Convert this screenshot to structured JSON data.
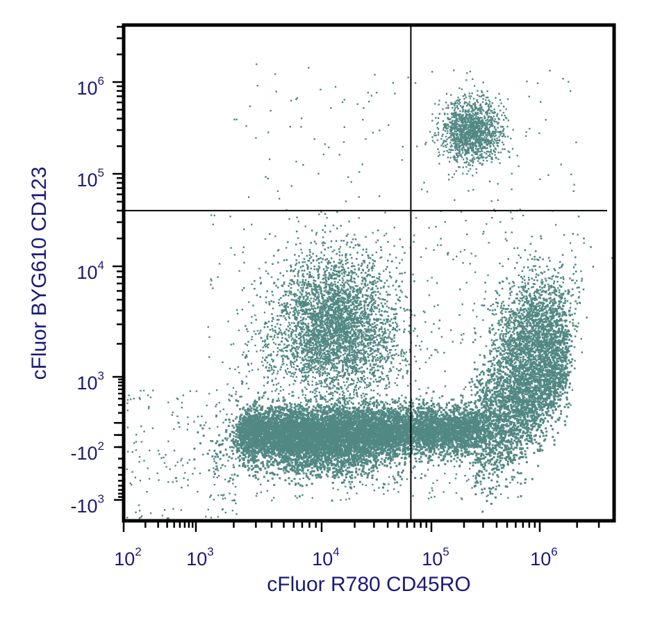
{
  "chart_data": {
    "type": "scatter",
    "xlabel": "cFluor R780 CD45RO",
    "ylabel": "cFluor BYG610 CD123",
    "x_scale": "biexponential",
    "y_scale": "biexponential",
    "xlim": [
      100,
      4000000
    ],
    "ylim": [
      -2500,
      4000000
    ],
    "x_ticks": [
      {
        "base": "10",
        "exp": "2",
        "value": 100
      },
      {
        "base": "10",
        "exp": "3",
        "value": 1000
      },
      {
        "base": "10",
        "exp": "4",
        "value": 10000
      },
      {
        "base": "10",
        "exp": "5",
        "value": 100000
      },
      {
        "base": "10",
        "exp": "6",
        "value": 1000000
      }
    ],
    "y_ticks": [
      {
        "base": "10",
        "exp": "6",
        "value": 1000000
      },
      {
        "base": "10",
        "exp": "5",
        "value": 100000
      },
      {
        "base": "10",
        "exp": "4",
        "value": 10000
      },
      {
        "base": "10",
        "exp": "3",
        "value": 1000
      },
      {
        "base": "-10",
        "exp": "2",
        "value": -100
      },
      {
        "base": "-10",
        "exp": "3",
        "value": -1000
      }
    ],
    "gates": {
      "x_threshold": 65000,
      "y_threshold": 40000
    },
    "point_color": "#528884",
    "populations": [
      {
        "x_center": 150000,
        "x_spread": [
          25000,
          1000000
        ],
        "y_center": -100,
        "y_spread": [
          -600,
          800
        ],
        "count": "dense",
        "shape": "rising band"
      },
      {
        "x_center": 9000,
        "x_spread": [
          2000,
          80000
        ],
        "y_center": -80,
        "y_spread": [
          -500,
          600
        ],
        "count": "dense"
      },
      {
        "x_center": 13000,
        "x_spread": [
          4000,
          45000
        ],
        "y_center": 3500,
        "y_spread": [
          800,
          15000
        ],
        "count": "medium"
      },
      {
        "x_center": 1400000,
        "x_spread": [
          500000,
          2200000
        ],
        "y_center": 2000,
        "y_spread": [
          500,
          6000
        ],
        "count": "medium"
      },
      {
        "x_center": 230000,
        "x_spread": [
          120000,
          450000
        ],
        "y_center": 300000,
        "y_spread": [
          110000,
          700000
        ],
        "count": "medium"
      }
    ]
  }
}
